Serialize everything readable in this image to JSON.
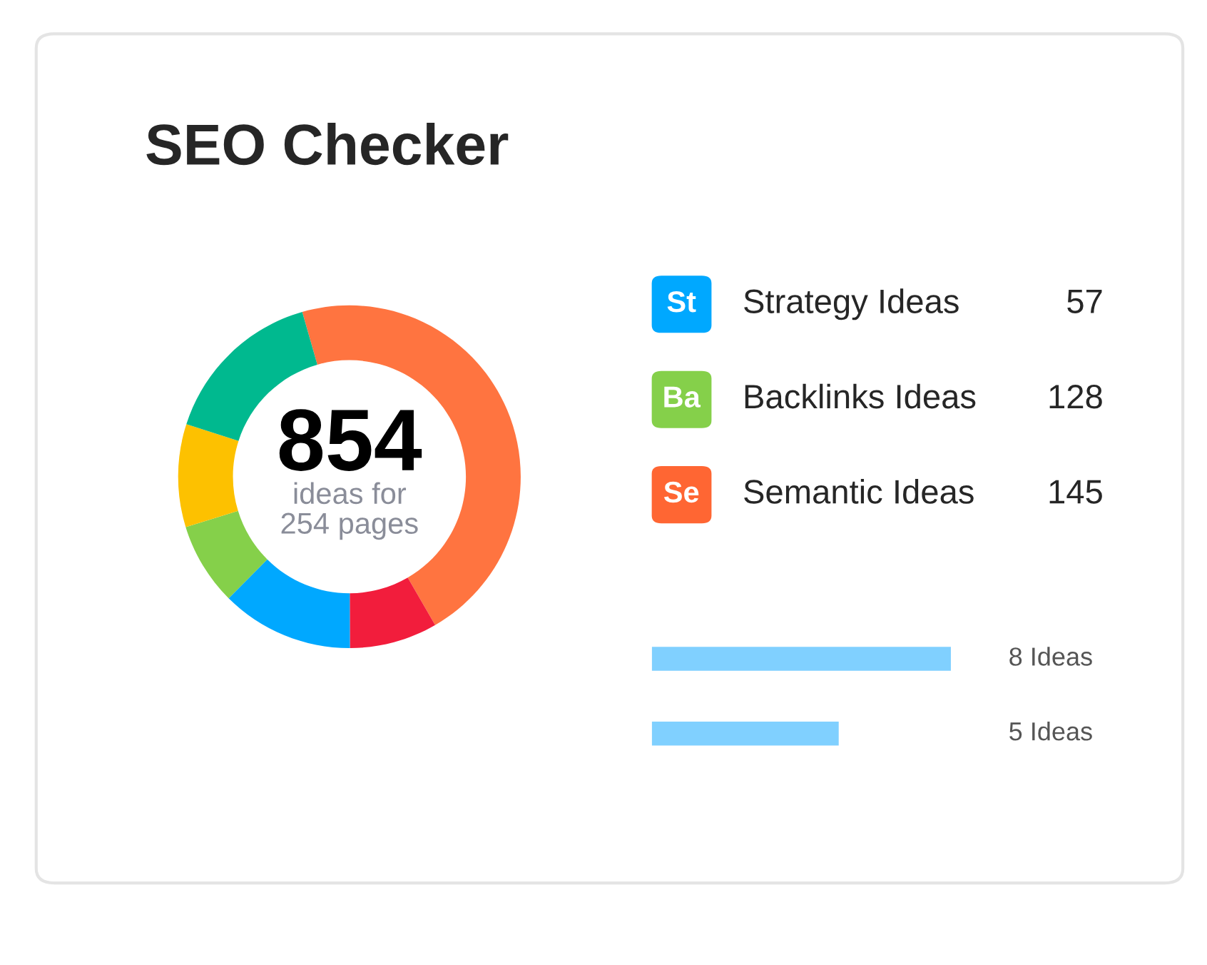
{
  "chart_data": [
    {
      "type": "donut",
      "title": "SEO Checker",
      "categories": [
        null,
        null,
        null,
        null,
        null,
        null
      ],
      "values": [
        46.1,
        8.3,
        12.5,
        7.8,
        9.7,
        15.6
      ],
      "colors": [
        "#ff7440",
        "#f21d3c",
        "#00a8ff",
        "#85d04a",
        "#fdc100",
        "#00b98f"
      ],
      "annotations": [
        "854",
        "ideas for\n254 pages"
      ]
    },
    {
      "type": "other",
      "categories": [
        "Strategy Ideas",
        "Backlinks Ideas",
        "Semantic Ideas"
      ],
      "values": [
        57,
        128,
        145
      ],
      "colors": [
        "#00a8ff",
        "#85d04a",
        "#ff6633"
      ],
      "annotations": [
        "St",
        "Ba",
        "Se"
      ],
      "data_labels": true
    },
    {
      "type": "bar",
      "orientation": "horizontal",
      "categories": [
        null,
        null
      ],
      "values": [
        8,
        5
      ],
      "color": "#80d0ff",
      "value_labels": [
        "8 Ideas",
        "5 Ideas"
      ]
    }
  ]
}
